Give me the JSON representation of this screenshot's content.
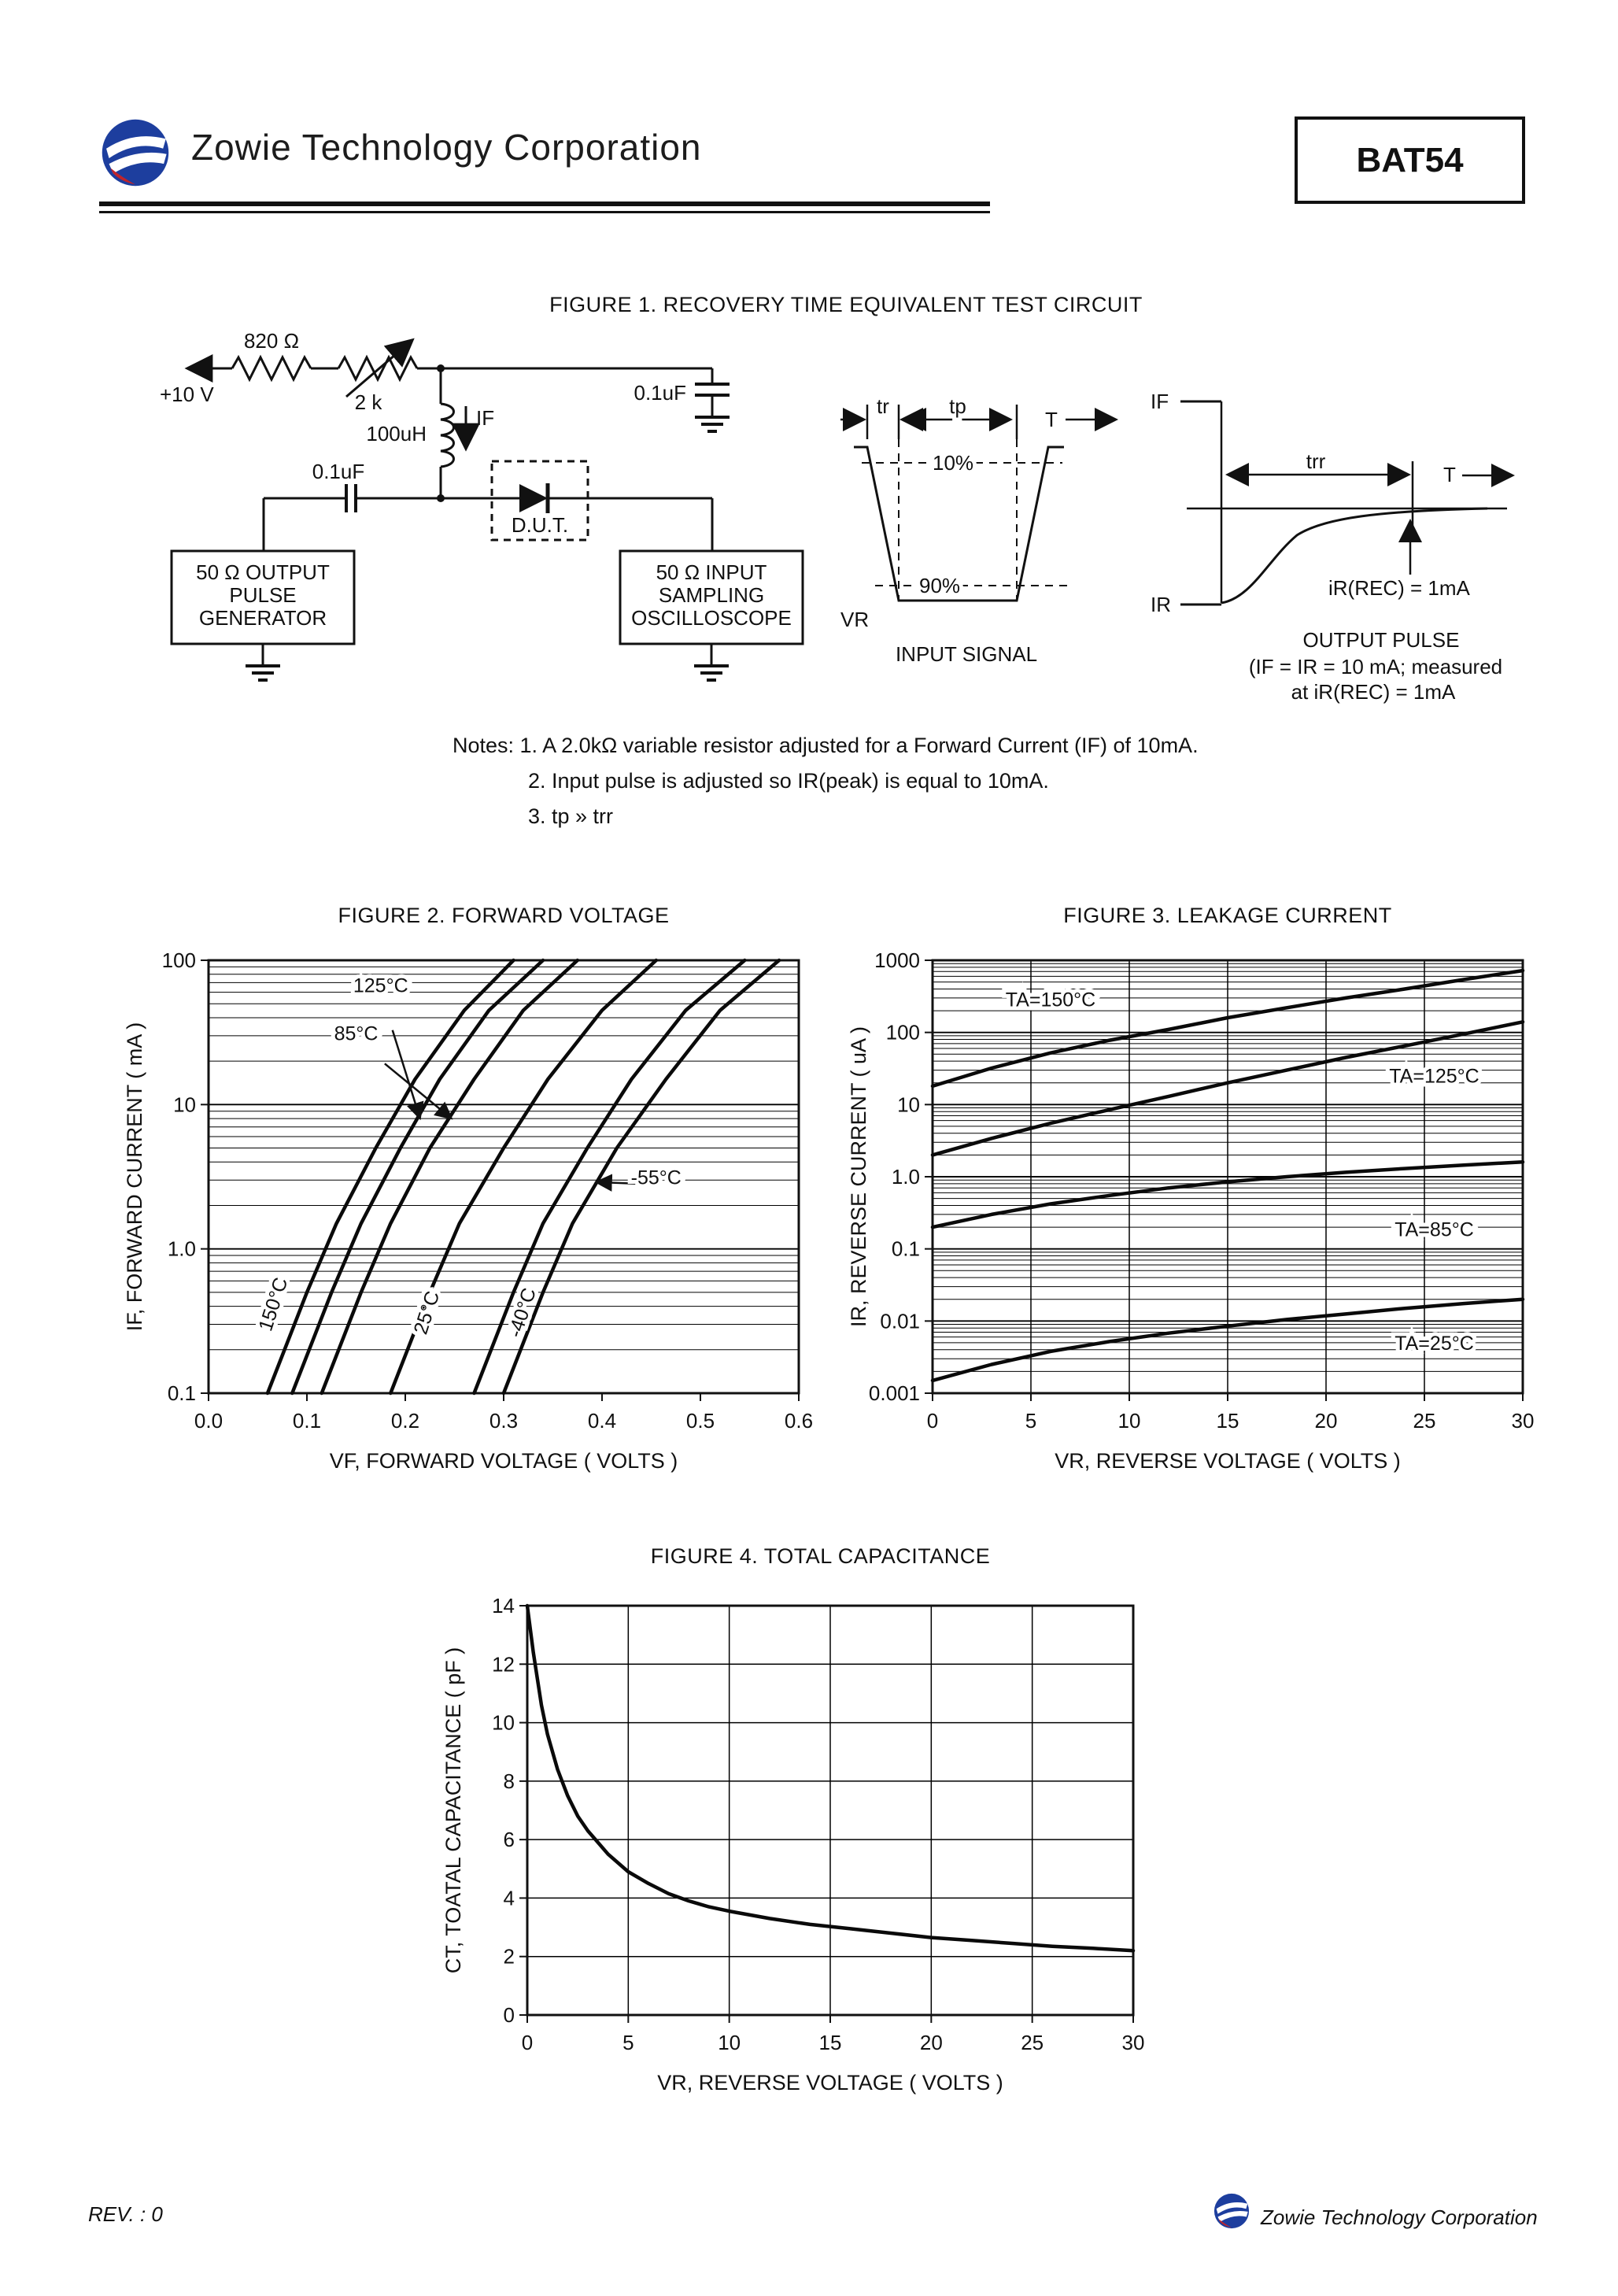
{
  "header": {
    "company": "Zowie Technology Corporation",
    "part": "BAT54"
  },
  "figure1": {
    "title": "FIGURE 1. RECOVERY TIME EQUIVALENT TEST CIRCUIT",
    "labels": {
      "supply": "+10 V",
      "r1": "820 Ω",
      "r2": "2 k",
      "inductor": "100uH",
      "if_label": "IF",
      "cap_top": "0.1uF",
      "cap_left": "0.1uF",
      "dut": "D.U.T.",
      "gen1": "50 Ω OUTPUT",
      "gen2": "PULSE",
      "gen3": "GENERATOR",
      "osc1": "50 Ω INPUT",
      "osc2": "SAMPLING",
      "osc3": "OSCILLOSCOPE",
      "tr": "tr",
      "tp": "tp",
      "t_in": "T",
      "pct10": "10%",
      "pct90": "90%",
      "vr": "VR",
      "input_signal": "INPUT SIGNAL",
      "if_out": "IF",
      "ir_out": "IR",
      "trr": "trr",
      "t_out": "T",
      "irec": "iR(REC) = 1mA",
      "output_pulse": "OUTPUT PULSE",
      "output_note1": "(IF = IR = 10 mA; measured",
      "output_note2": "at iR(REC) = 1mA"
    },
    "notes": {
      "line1": "Notes:  1. A 2.0kΩ variable resistor adjusted for a Forward Current (IF) of 10mA.",
      "line2": "2. Input pulse is adjusted so IR(peak) is equal to 10mA.",
      "line3": "3. tp » trr"
    }
  },
  "footer": {
    "rev": "REV. : 0",
    "company": "Zowie Technology Corporation"
  },
  "chart_data": [
    {
      "name": "forward-voltage",
      "type": "line",
      "title": "FIGURE 2. FORWARD VOLTAGE",
      "xlabel": "VF, FORWARD VOLTAGE ( VOLTS )",
      "ylabel": "IF, FORWARD CURRENT ( mA )",
      "xscale": "linear",
      "yscale": "log",
      "xlim": [
        0,
        0.6
      ],
      "ylim": [
        0.1,
        100
      ],
      "xgrid": false,
      "ygrid": false,
      "xticks": [
        {
          "v": 0,
          "label": "0.0"
        },
        {
          "v": 0.1,
          "label": "0.1"
        },
        {
          "v": 0.2,
          "label": "0.2"
        },
        {
          "v": 0.3,
          "label": "0.3"
        },
        {
          "v": 0.4,
          "label": "0.4"
        },
        {
          "v": 0.5,
          "label": "0.5"
        },
        {
          "v": 0.6,
          "label": "0.6"
        }
      ],
      "yticks": [
        {
          "v": 100,
          "label": "100"
        },
        {
          "v": 10,
          "label": "10"
        },
        {
          "v": 1,
          "label": "1.0"
        },
        {
          "v": 0.1,
          "label": "0.1"
        }
      ],
      "series": [
        {
          "name": "150°C",
          "points": [
            [
              0.06,
              0.1
            ],
            [
              0.1,
              0.5
            ],
            [
              0.13,
              1.5
            ],
            [
              0.17,
              5
            ],
            [
              0.21,
              15
            ],
            [
              0.26,
              45
            ],
            [
              0.31,
              100
            ]
          ]
        },
        {
          "name": "125°C",
          "points": [
            [
              0.085,
              0.1
            ],
            [
              0.125,
              0.5
            ],
            [
              0.155,
              1.5
            ],
            [
              0.195,
              5
            ],
            [
              0.235,
              15
            ],
            [
              0.285,
              45
            ],
            [
              0.34,
              100
            ]
          ]
        },
        {
          "name": "85°C",
          "points": [
            [
              0.115,
              0.1
            ],
            [
              0.155,
              0.5
            ],
            [
              0.185,
              1.5
            ],
            [
              0.225,
              5
            ],
            [
              0.27,
              15
            ],
            [
              0.32,
              45
            ],
            [
              0.375,
              100
            ]
          ]
        },
        {
          "name": "25°C",
          "points": [
            [
              0.185,
              0.1
            ],
            [
              0.225,
              0.5
            ],
            [
              0.255,
              1.5
            ],
            [
              0.3,
              5
            ],
            [
              0.345,
              15
            ],
            [
              0.4,
              45
            ],
            [
              0.455,
              100
            ]
          ]
        },
        {
          "name": "-40°C",
          "points": [
            [
              0.27,
              0.1
            ],
            [
              0.31,
              0.5
            ],
            [
              0.34,
              1.5
            ],
            [
              0.385,
              5
            ],
            [
              0.43,
              15
            ],
            [
              0.485,
              45
            ],
            [
              0.545,
              100
            ]
          ]
        },
        {
          "name": "-55°C",
          "points": [
            [
              0.3,
              0.1
            ],
            [
              0.34,
              0.5
            ],
            [
              0.37,
              1.5
            ],
            [
              0.415,
              5
            ],
            [
              0.465,
              15
            ],
            [
              0.52,
              45
            ],
            [
              0.58,
              100
            ]
          ]
        }
      ],
      "annotations": [
        {
          "text": "125°C",
          "x": 0.175,
          "y": 60,
          "arrow": [
            0.215,
            8
          ]
        },
        {
          "text": "85°C",
          "x": 0.15,
          "y": 28,
          "arrow": [
            0.247,
            8
          ]
        },
        {
          "text": "150°C",
          "x": 0.072,
          "y": 0.4,
          "rotate": -72
        },
        {
          "text": "25°C",
          "x": 0.228,
          "y": 0.35,
          "rotate": -72
        },
        {
          "text": "-40°C",
          "x": 0.325,
          "y": 0.35,
          "rotate": -72
        },
        {
          "text": "-55°C",
          "x": 0.455,
          "y": 2.8,
          "arrow": [
            0.394,
            2.9
          ]
        }
      ]
    },
    {
      "name": "leakage-current",
      "type": "line",
      "title": "FIGURE 3. LEAKAGE CURRENT",
      "xlabel": "VR, REVERSE VOLTAGE ( VOLTS )",
      "ylabel": "IR, REVERSE CURRENT ( uA )",
      "xscale": "linear",
      "yscale": "log",
      "xlim": [
        0,
        30
      ],
      "ylim": [
        0.001,
        1000
      ],
      "xgrid": true,
      "ygrid": false,
      "xticks": [
        {
          "v": 0,
          "label": "0"
        },
        {
          "v": 5,
          "label": "5"
        },
        {
          "v": 10,
          "label": "10"
        },
        {
          "v": 15,
          "label": "15"
        },
        {
          "v": 20,
          "label": "20"
        },
        {
          "v": 25,
          "label": "25"
        },
        {
          "v": 30,
          "label": "30"
        }
      ],
      "yticks": [
        {
          "v": 1000,
          "label": "1000"
        },
        {
          "v": 100,
          "label": "100"
        },
        {
          "v": 10,
          "label": "10"
        },
        {
          "v": 1,
          "label": "1.0"
        },
        {
          "v": 0.1,
          "label": "0.1"
        },
        {
          "v": 0.01,
          "label": "0.01"
        },
        {
          "v": 0.001,
          "label": "0.001"
        }
      ],
      "series": [
        {
          "name": "TA=150°C",
          "points": [
            [
              0,
              18
            ],
            [
              3,
              32
            ],
            [
              6,
              52
            ],
            [
              9,
              78
            ],
            [
              12,
              110
            ],
            [
              15,
              160
            ],
            [
              18,
              220
            ],
            [
              21,
              300
            ],
            [
              24,
              400
            ],
            [
              27,
              540
            ],
            [
              30,
              720
            ]
          ]
        },
        {
          "name": "TA=125°C",
          "points": [
            [
              0,
              2
            ],
            [
              3,
              3.4
            ],
            [
              6,
              5.5
            ],
            [
              9,
              8.5
            ],
            [
              12,
              13
            ],
            [
              15,
              20
            ],
            [
              18,
              30
            ],
            [
              21,
              45
            ],
            [
              24,
              65
            ],
            [
              27,
              95
            ],
            [
              30,
              140
            ]
          ]
        },
        {
          "name": "TA=85°C",
          "points": [
            [
              0,
              0.2
            ],
            [
              3,
              0.3
            ],
            [
              6,
              0.42
            ],
            [
              9,
              0.55
            ],
            [
              12,
              0.7
            ],
            [
              15,
              0.85
            ],
            [
              18,
              1.0
            ],
            [
              21,
              1.15
            ],
            [
              24,
              1.3
            ],
            [
              27,
              1.45
            ],
            [
              30,
              1.6
            ]
          ]
        },
        {
          "name": "TA=25°C",
          "points": [
            [
              0,
              0.0015
            ],
            [
              3,
              0.0025
            ],
            [
              6,
              0.0038
            ],
            [
              9,
              0.0052
            ],
            [
              12,
              0.0068
            ],
            [
              15,
              0.0085
            ],
            [
              18,
              0.0105
            ],
            [
              21,
              0.0125
            ],
            [
              24,
              0.015
            ],
            [
              27,
              0.0175
            ],
            [
              30,
              0.02
            ]
          ]
        }
      ],
      "annotations": [
        {
          "text": "TA=150°C",
          "x": 6,
          "y": 230,
          "halo": true
        },
        {
          "text": "TA=125°C",
          "x": 25.5,
          "y": 20,
          "halo": true
        },
        {
          "text": "TA=85°C",
          "x": 25.5,
          "y": 0.15,
          "halo": true
        },
        {
          "text": "TA=25°C",
          "x": 25.5,
          "y": 0.004,
          "halo": true
        }
      ]
    },
    {
      "name": "total-capacitance",
      "type": "line",
      "title": "FIGURE 4. TOTAL CAPACITANCE",
      "xlabel": "VR, REVERSE VOLTAGE ( VOLTS )",
      "ylabel": "CT, TOATAL CAPACITANCE ( pF )",
      "xscale": "linear",
      "yscale": "linear",
      "xlim": [
        0,
        30
      ],
      "ylim": [
        0,
        14
      ],
      "xgrid": true,
      "ygrid": true,
      "xticks": [
        {
          "v": 0,
          "label": "0"
        },
        {
          "v": 5,
          "label": "5"
        },
        {
          "v": 10,
          "label": "10"
        },
        {
          "v": 15,
          "label": "15"
        },
        {
          "v": 20,
          "label": "20"
        },
        {
          "v": 25,
          "label": "25"
        },
        {
          "v": 30,
          "label": "30"
        }
      ],
      "yticks": [
        {
          "v": 0,
          "label": "0"
        },
        {
          "v": 2,
          "label": "2"
        },
        {
          "v": 4,
          "label": "4"
        },
        {
          "v": 6,
          "label": "6"
        },
        {
          "v": 8,
          "label": "8"
        },
        {
          "v": 10,
          "label": "10"
        },
        {
          "v": 12,
          "label": "12"
        },
        {
          "v": 14,
          "label": "14"
        }
      ],
      "series": [
        {
          "name": "CT",
          "points": [
            [
              0,
              14
            ],
            [
              0.3,
              12.4
            ],
            [
              0.7,
              10.6
            ],
            [
              1,
              9.6
            ],
            [
              1.5,
              8.4
            ],
            [
              2,
              7.5
            ],
            [
              2.5,
              6.8
            ],
            [
              3,
              6.3
            ],
            [
              4,
              5.5
            ],
            [
              5,
              4.9
            ],
            [
              6,
              4.5
            ],
            [
              7,
              4.15
            ],
            [
              8,
              3.9
            ],
            [
              9,
              3.7
            ],
            [
              10,
              3.55
            ],
            [
              12,
              3.3
            ],
            [
              14,
              3.1
            ],
            [
              16,
              2.95
            ],
            [
              18,
              2.8
            ],
            [
              20,
              2.65
            ],
            [
              22,
              2.55
            ],
            [
              24,
              2.45
            ],
            [
              26,
              2.35
            ],
            [
              28,
              2.28
            ],
            [
              30,
              2.2
            ]
          ]
        }
      ],
      "annotations": []
    }
  ]
}
